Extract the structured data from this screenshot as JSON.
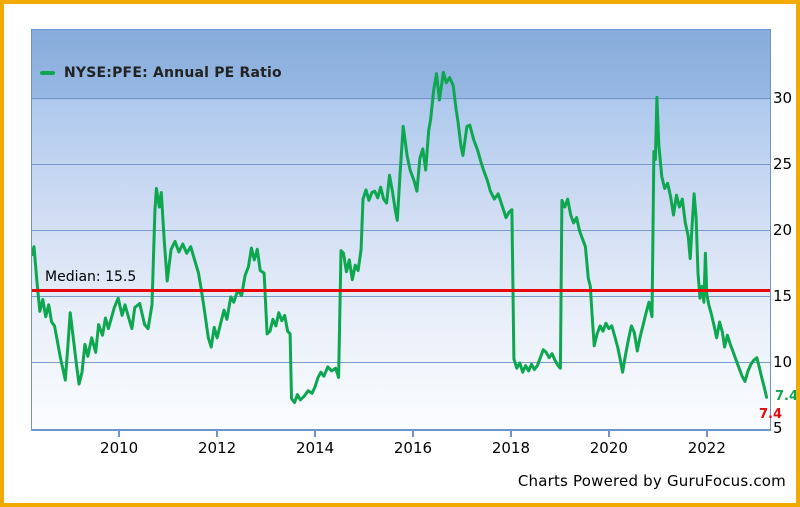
{
  "window": {
    "border_color": "#f1ab00",
    "background": "#ffffff"
  },
  "legend": {
    "label": "NYSE:PFE: Annual PE Ratio",
    "swatch_color": "#0da750"
  },
  "median": {
    "label": "Median: 15.5",
    "value": 15.5,
    "color": "#e8070c"
  },
  "end_labels": {
    "current_green": "7.4",
    "current_red": "7.4"
  },
  "footer": {
    "text": "Charts Powered by GuruFocus.com"
  },
  "colors": {
    "line": "#0da750",
    "median": "#e8070c",
    "grid": "#6e91c8",
    "plot_border": "#6d96cf"
  },
  "chart_data": {
    "type": "line",
    "title": "NYSE:PFE: Annual PE Ratio",
    "legend_position": "top-left",
    "grid": true,
    "x_axis": {
      "ticks": [
        2010,
        2012,
        2014,
        2016,
        2018,
        2020,
        2022
      ],
      "range": [
        2008.2,
        2023.27
      ]
    },
    "y_axis": {
      "ticks": [
        5,
        10,
        15,
        20,
        25,
        30
      ],
      "range": [
        5,
        35.2
      ],
      "side": "right"
    },
    "median_line": {
      "value": 15.5,
      "label": "Median: 15.5",
      "color": "#e8070c"
    },
    "last_value": 7.4,
    "series": [
      {
        "name": "NYSE:PFE: Annual PE Ratio",
        "color": "#0da750",
        "points": [
          [
            2008.2,
            18.2
          ],
          [
            2008.24,
            18.8
          ],
          [
            2008.3,
            16.2
          ],
          [
            2008.36,
            13.9
          ],
          [
            2008.42,
            14.8
          ],
          [
            2008.48,
            13.5
          ],
          [
            2008.54,
            14.4
          ],
          [
            2008.6,
            13.1
          ],
          [
            2008.66,
            12.8
          ],
          [
            2008.72,
            11.6
          ],
          [
            2008.78,
            10.4
          ],
          [
            2008.84,
            9.4
          ],
          [
            2008.88,
            8.7
          ],
          [
            2008.93,
            11.1
          ],
          [
            2008.98,
            13.8
          ],
          [
            2009.04,
            12.0
          ],
          [
            2009.1,
            10.1
          ],
          [
            2009.16,
            8.4
          ],
          [
            2009.22,
            9.3
          ],
          [
            2009.28,
            11.4
          ],
          [
            2009.34,
            10.5
          ],
          [
            2009.42,
            11.9
          ],
          [
            2009.5,
            10.8
          ],
          [
            2009.56,
            12.9
          ],
          [
            2009.64,
            12.1
          ],
          [
            2009.7,
            13.4
          ],
          [
            2009.76,
            12.6
          ],
          [
            2009.88,
            14.2
          ],
          [
            2009.96,
            14.9
          ],
          [
            2010.04,
            13.6
          ],
          [
            2010.1,
            14.4
          ],
          [
            2010.2,
            13.1
          ],
          [
            2010.24,
            12.6
          ],
          [
            2010.3,
            14.2
          ],
          [
            2010.4,
            14.5
          ],
          [
            2010.5,
            12.9
          ],
          [
            2010.57,
            12.6
          ],
          [
            2010.65,
            14.4
          ],
          [
            2010.71,
            21.5
          ],
          [
            2010.74,
            23.2
          ],
          [
            2010.8,
            21.8
          ],
          [
            2010.84,
            22.9
          ],
          [
            2010.9,
            19.3
          ],
          [
            2010.96,
            16.2
          ],
          [
            2011.04,
            18.6
          ],
          [
            2011.12,
            19.2
          ],
          [
            2011.2,
            18.4
          ],
          [
            2011.28,
            19.0
          ],
          [
            2011.36,
            18.3
          ],
          [
            2011.44,
            18.8
          ],
          [
            2011.52,
            17.8
          ],
          [
            2011.6,
            16.8
          ],
          [
            2011.66,
            15.5
          ],
          [
            2011.72,
            14.0
          ],
          [
            2011.8,
            11.9
          ],
          [
            2011.86,
            11.2
          ],
          [
            2011.92,
            12.7
          ],
          [
            2011.98,
            11.9
          ],
          [
            2012.06,
            13.1
          ],
          [
            2012.12,
            14.0
          ],
          [
            2012.18,
            13.3
          ],
          [
            2012.26,
            15.0
          ],
          [
            2012.32,
            14.6
          ],
          [
            2012.4,
            15.5
          ],
          [
            2012.48,
            15.1
          ],
          [
            2012.55,
            16.6
          ],
          [
            2012.62,
            17.3
          ],
          [
            2012.68,
            18.7
          ],
          [
            2012.74,
            17.8
          ],
          [
            2012.8,
            18.6
          ],
          [
            2012.86,
            17.0
          ],
          [
            2012.94,
            16.8
          ],
          [
            2013.0,
            12.2
          ],
          [
            2013.06,
            12.4
          ],
          [
            2013.12,
            13.3
          ],
          [
            2013.18,
            12.8
          ],
          [
            2013.24,
            13.8
          ],
          [
            2013.3,
            13.2
          ],
          [
            2013.36,
            13.6
          ],
          [
            2013.42,
            12.4
          ],
          [
            2013.47,
            12.2
          ],
          [
            2013.5,
            7.3
          ],
          [
            2013.56,
            7.0
          ],
          [
            2013.62,
            7.6
          ],
          [
            2013.68,
            7.2
          ],
          [
            2013.76,
            7.5
          ],
          [
            2013.84,
            7.9
          ],
          [
            2013.92,
            7.7
          ],
          [
            2013.98,
            8.2
          ],
          [
            2014.04,
            8.9
          ],
          [
            2014.1,
            9.3
          ],
          [
            2014.16,
            9.0
          ],
          [
            2014.24,
            9.7
          ],
          [
            2014.32,
            9.4
          ],
          [
            2014.4,
            9.6
          ],
          [
            2014.46,
            8.9
          ],
          [
            2014.51,
            18.5
          ],
          [
            2014.56,
            18.3
          ],
          [
            2014.62,
            16.9
          ],
          [
            2014.68,
            17.8
          ],
          [
            2014.74,
            16.3
          ],
          [
            2014.8,
            17.4
          ],
          [
            2014.86,
            17.0
          ],
          [
            2014.92,
            18.6
          ],
          [
            2014.96,
            22.4
          ],
          [
            2015.02,
            23.1
          ],
          [
            2015.08,
            22.3
          ],
          [
            2015.14,
            22.9
          ],
          [
            2015.2,
            23.0
          ],
          [
            2015.26,
            22.5
          ],
          [
            2015.32,
            23.3
          ],
          [
            2015.38,
            22.4
          ],
          [
            2015.44,
            22.1
          ],
          [
            2015.5,
            24.2
          ],
          [
            2015.56,
            23.0
          ],
          [
            2015.62,
            21.5
          ],
          [
            2015.66,
            20.8
          ],
          [
            2015.72,
            24.6
          ],
          [
            2015.78,
            27.9
          ],
          [
            2015.86,
            25.7
          ],
          [
            2015.92,
            24.6
          ],
          [
            2016.0,
            23.8
          ],
          [
            2016.06,
            23.0
          ],
          [
            2016.12,
            25.5
          ],
          [
            2016.18,
            26.2
          ],
          [
            2016.24,
            24.6
          ],
          [
            2016.3,
            27.6
          ],
          [
            2016.34,
            28.4
          ],
          [
            2016.4,
            30.6
          ],
          [
            2016.46,
            31.9
          ],
          [
            2016.52,
            29.9
          ],
          [
            2016.6,
            32.0
          ],
          [
            2016.66,
            31.2
          ],
          [
            2016.73,
            31.6
          ],
          [
            2016.8,
            31.0
          ],
          [
            2016.86,
            29.2
          ],
          [
            2016.9,
            28.2
          ],
          [
            2016.96,
            26.4
          ],
          [
            2017.0,
            25.7
          ],
          [
            2017.08,
            27.9
          ],
          [
            2017.14,
            28.0
          ],
          [
            2017.22,
            26.9
          ],
          [
            2017.3,
            26.1
          ],
          [
            2017.36,
            25.3
          ],
          [
            2017.42,
            24.6
          ],
          [
            2017.5,
            23.8
          ],
          [
            2017.56,
            23.0
          ],
          [
            2017.64,
            22.4
          ],
          [
            2017.72,
            22.8
          ],
          [
            2017.8,
            21.9
          ],
          [
            2017.88,
            21.0
          ],
          [
            2017.94,
            21.4
          ],
          [
            2018.0,
            21.6
          ],
          [
            2018.04,
            10.3
          ],
          [
            2018.1,
            9.6
          ],
          [
            2018.16,
            10.0
          ],
          [
            2018.22,
            9.3
          ],
          [
            2018.28,
            9.8
          ],
          [
            2018.34,
            9.4
          ],
          [
            2018.4,
            9.9
          ],
          [
            2018.46,
            9.5
          ],
          [
            2018.52,
            9.8
          ],
          [
            2018.58,
            10.4
          ],
          [
            2018.64,
            11.0
          ],
          [
            2018.7,
            10.8
          ],
          [
            2018.76,
            10.4
          ],
          [
            2018.82,
            10.7
          ],
          [
            2018.88,
            10.2
          ],
          [
            2018.94,
            9.8
          ],
          [
            2018.99,
            9.6
          ],
          [
            2019.02,
            22.3
          ],
          [
            2019.08,
            21.8
          ],
          [
            2019.14,
            22.4
          ],
          [
            2019.2,
            21.2
          ],
          [
            2019.26,
            20.6
          ],
          [
            2019.32,
            21.0
          ],
          [
            2019.38,
            20.0
          ],
          [
            2019.44,
            19.4
          ],
          [
            2019.5,
            18.8
          ],
          [
            2019.56,
            16.4
          ],
          [
            2019.6,
            15.8
          ],
          [
            2019.64,
            13.5
          ],
          [
            2019.68,
            11.3
          ],
          [
            2019.74,
            12.2
          ],
          [
            2019.8,
            12.8
          ],
          [
            2019.86,
            12.4
          ],
          [
            2019.92,
            13.0
          ],
          [
            2019.98,
            12.6
          ],
          [
            2020.04,
            12.8
          ],
          [
            2020.1,
            12.0
          ],
          [
            2020.16,
            11.2
          ],
          [
            2020.22,
            10.1
          ],
          [
            2020.26,
            9.3
          ],
          [
            2020.32,
            10.6
          ],
          [
            2020.38,
            11.8
          ],
          [
            2020.44,
            12.8
          ],
          [
            2020.5,
            12.3
          ],
          [
            2020.56,
            10.9
          ],
          [
            2020.62,
            12.0
          ],
          [
            2020.68,
            12.9
          ],
          [
            2020.74,
            13.8
          ],
          [
            2020.8,
            14.6
          ],
          [
            2020.86,
            13.5
          ],
          [
            2020.9,
            26.0
          ],
          [
            2020.93,
            25.4
          ],
          [
            2020.96,
            30.1
          ],
          [
            2021.0,
            26.5
          ],
          [
            2021.06,
            24.1
          ],
          [
            2021.12,
            23.2
          ],
          [
            2021.18,
            23.6
          ],
          [
            2021.24,
            22.6
          ],
          [
            2021.3,
            21.2
          ],
          [
            2021.36,
            22.7
          ],
          [
            2021.42,
            21.8
          ],
          [
            2021.48,
            22.4
          ],
          [
            2021.54,
            20.6
          ],
          [
            2021.6,
            19.6
          ],
          [
            2021.64,
            17.9
          ],
          [
            2021.68,
            20.4
          ],
          [
            2021.72,
            22.8
          ],
          [
            2021.76,
            21.0
          ],
          [
            2021.8,
            16.8
          ],
          [
            2021.84,
            14.9
          ],
          [
            2021.88,
            15.8
          ],
          [
            2021.92,
            14.6
          ],
          [
            2021.95,
            18.3
          ],
          [
            2021.98,
            15.2
          ],
          [
            2022.02,
            14.4
          ],
          [
            2022.08,
            13.6
          ],
          [
            2022.14,
            12.6
          ],
          [
            2022.18,
            11.9
          ],
          [
            2022.24,
            13.1
          ],
          [
            2022.3,
            12.3
          ],
          [
            2022.34,
            11.2
          ],
          [
            2022.4,
            12.1
          ],
          [
            2022.46,
            11.4
          ],
          [
            2022.52,
            10.8
          ],
          [
            2022.58,
            10.2
          ],
          [
            2022.64,
            9.6
          ],
          [
            2022.7,
            9.0
          ],
          [
            2022.76,
            8.6
          ],
          [
            2022.82,
            9.4
          ],
          [
            2022.88,
            9.9
          ],
          [
            2022.94,
            10.2
          ],
          [
            2023.0,
            10.4
          ],
          [
            2023.05,
            9.7
          ],
          [
            2023.1,
            8.9
          ],
          [
            2023.15,
            8.2
          ],
          [
            2023.2,
            7.4
          ]
        ]
      }
    ]
  }
}
